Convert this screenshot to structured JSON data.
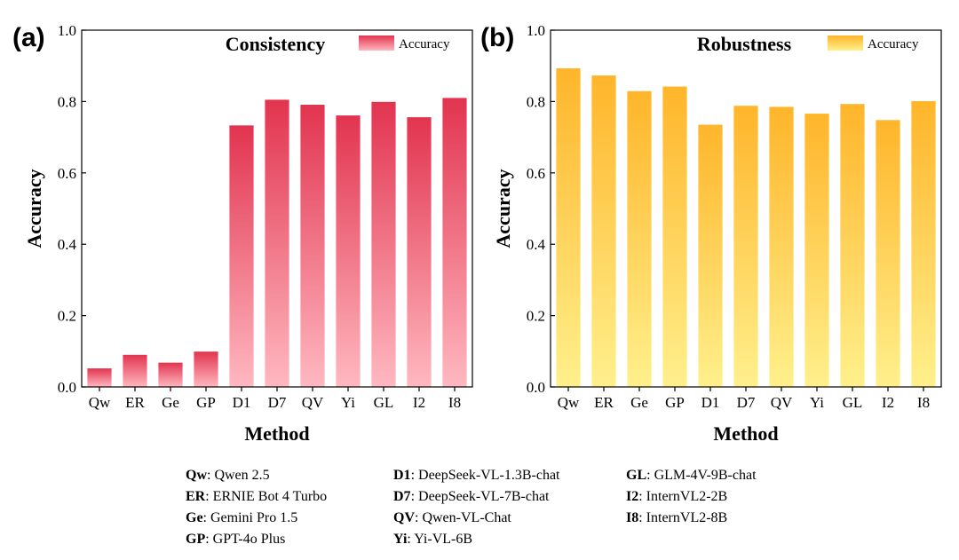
{
  "figure": {
    "legend_key": [
      {
        "abbr": "Qw",
        "name": "Qwen 2.5"
      },
      {
        "abbr": "ER",
        "name": "ERNIE Bot 4 Turbo"
      },
      {
        "abbr": "Ge",
        "name": "Gemini Pro 1.5"
      },
      {
        "abbr": "GP",
        "name": "GPT-4o Plus"
      },
      {
        "abbr": "D1",
        "name": "DeepSeek-VL-1.3B-chat"
      },
      {
        "abbr": "D7",
        "name": "DeepSeek-VL-7B-chat"
      },
      {
        "abbr": "QV",
        "name": "Qwen-VL-Chat"
      },
      {
        "abbr": "Yi",
        "name": "Yi-VL-6B"
      },
      {
        "abbr": "GL",
        "name": "GLM-4V-9B-chat"
      },
      {
        "abbr": "I2",
        "name": "InternVL2-2B"
      },
      {
        "abbr": "I8",
        "name": "InternVL2-8B"
      }
    ]
  },
  "chart_data": [
    {
      "panel": "(a)",
      "type": "bar",
      "title": "Consistency",
      "xlabel": "Method",
      "ylabel": "Accuracy",
      "ylim": [
        0,
        1.0
      ],
      "yticks": [
        "0.0",
        "0.2",
        "0.4",
        "0.6",
        "0.8",
        "1.0"
      ],
      "categories": [
        "Qw",
        "ER",
        "Ge",
        "GP",
        "D1",
        "D7",
        "QV",
        "Yi",
        "GL",
        "I2",
        "I8"
      ],
      "series": [
        {
          "name": "Accuracy",
          "values": [
            0.052,
            0.09,
            0.068,
            0.099,
            0.733,
            0.805,
            0.791,
            0.761,
            0.799,
            0.756,
            0.81
          ]
        }
      ],
      "legend_position": "top-right",
      "colors": {
        "top": "#e2344f",
        "bottom": "#ffb8c0"
      }
    },
    {
      "panel": "(b)",
      "type": "bar",
      "title": "Robustness",
      "xlabel": "Method",
      "ylabel": "Accuracy",
      "ylim": [
        0,
        1.0
      ],
      "yticks": [
        "0.0",
        "0.2",
        "0.4",
        "0.6",
        "0.8",
        "1.0"
      ],
      "categories": [
        "Qw",
        "ER",
        "Ge",
        "GP",
        "D1",
        "D7",
        "QV",
        "Yi",
        "GL",
        "I2",
        "I8"
      ],
      "series": [
        {
          "name": "Accuracy",
          "values": [
            0.893,
            0.873,
            0.829,
            0.842,
            0.735,
            0.788,
            0.785,
            0.766,
            0.793,
            0.748,
            0.801
          ]
        }
      ],
      "legend_position": "top-right",
      "colors": {
        "top": "#ffb52a",
        "bottom": "#fff08c"
      }
    }
  ]
}
